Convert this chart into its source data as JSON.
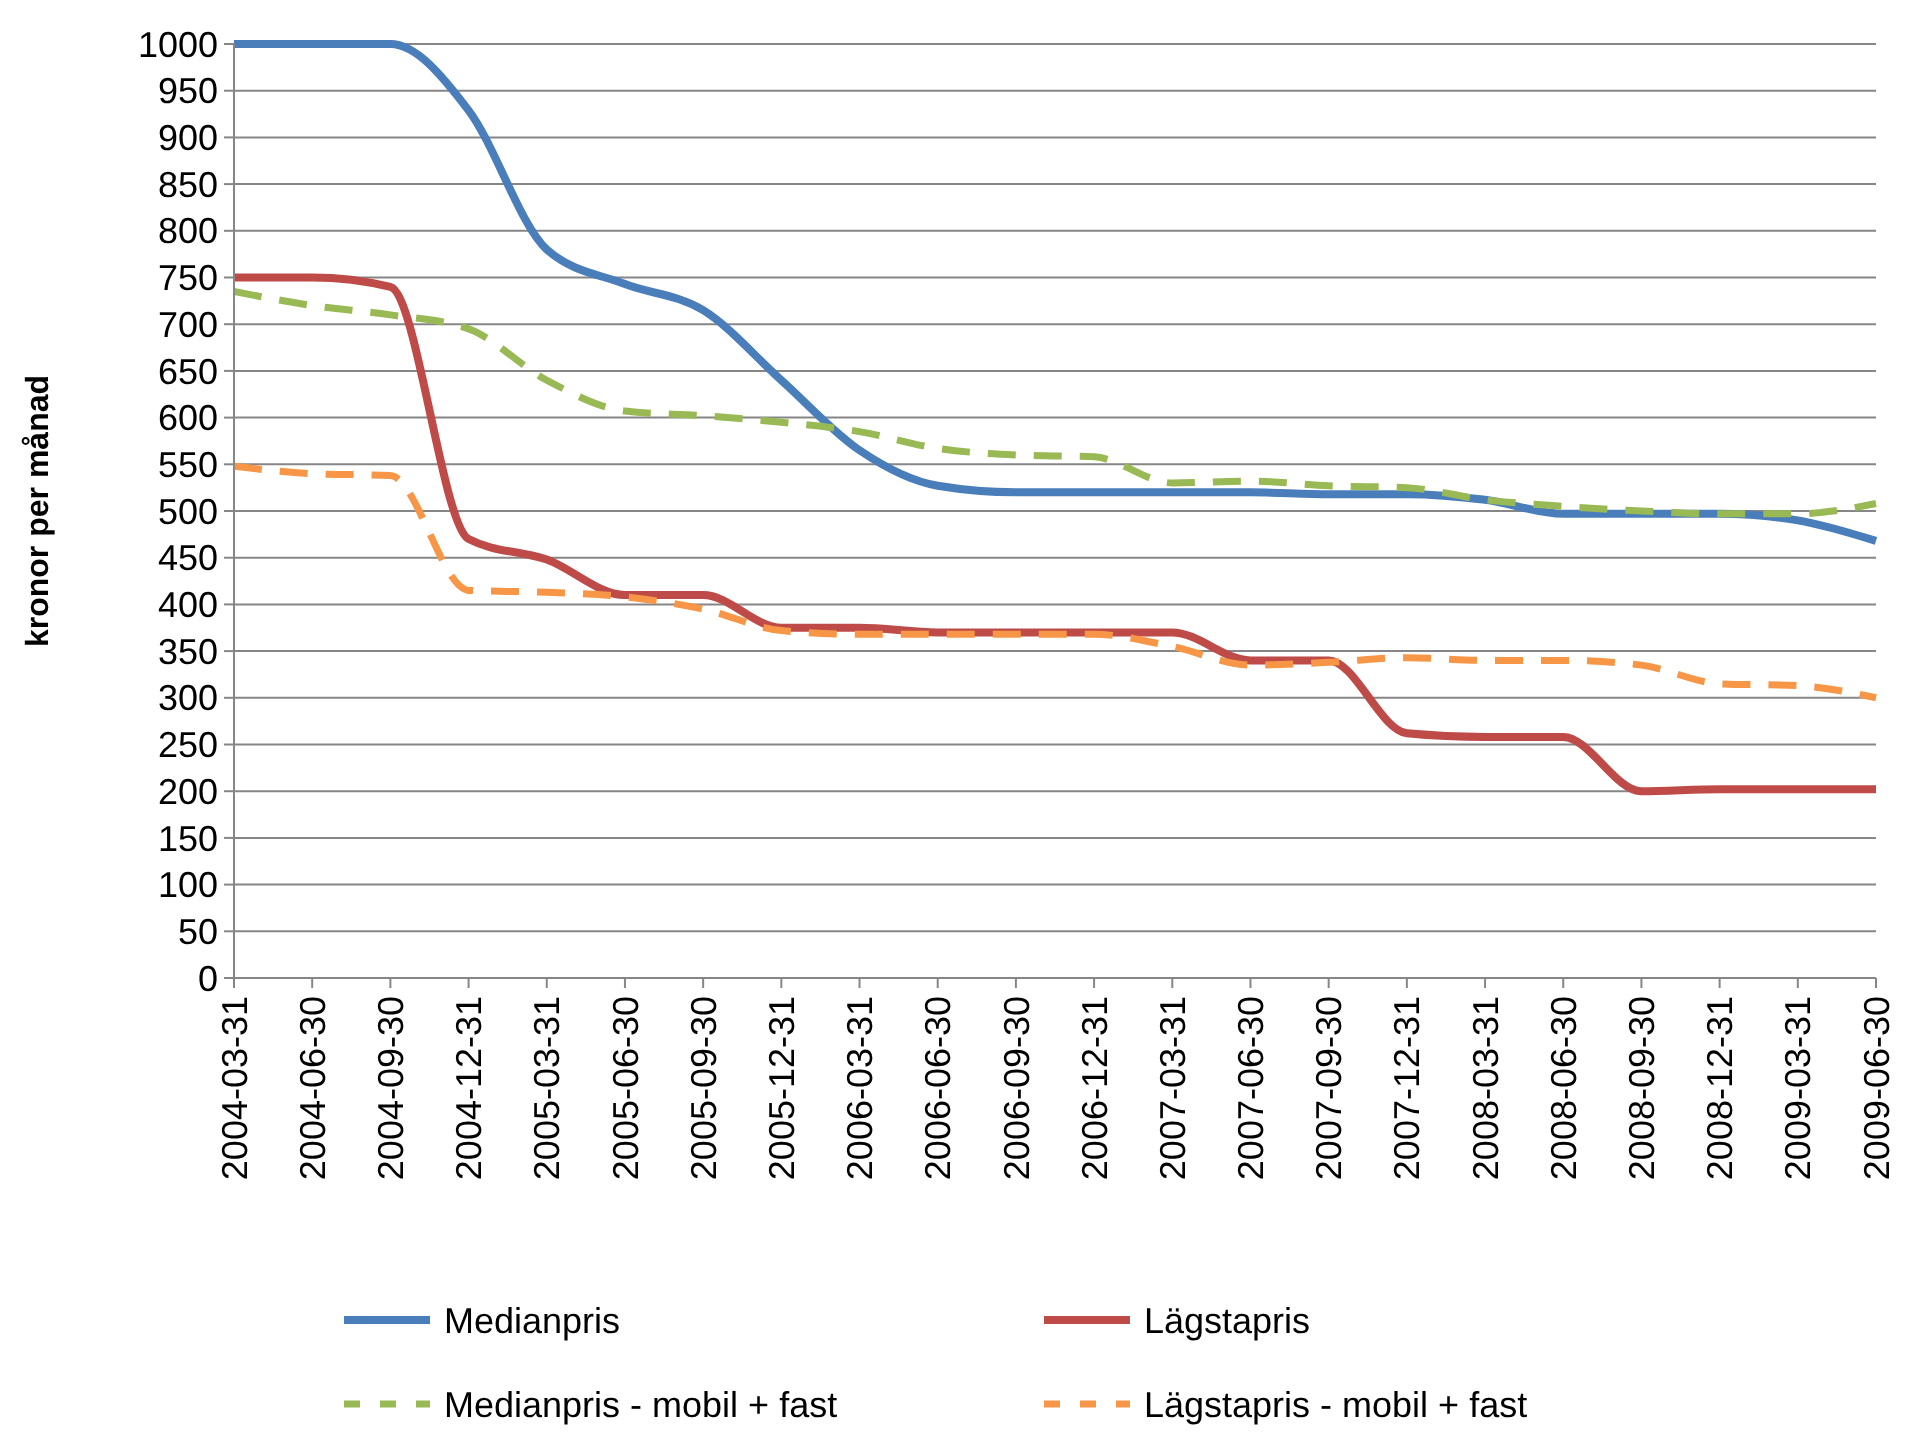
{
  "chart_data": {
    "type": "line",
    "ylabel": "kronor per månad",
    "categories": [
      "2004-03-31",
      "2004-06-30",
      "2004-09-30",
      "2004-12-31",
      "2005-03-31",
      "2005-06-30",
      "2005-09-30",
      "2005-12-31",
      "2006-03-31",
      "2006-06-30",
      "2006-09-30",
      "2006-12-31",
      "2007-03-31",
      "2007-06-30",
      "2007-09-30",
      "2007-12-31",
      "2008-03-31",
      "2008-06-30",
      "2008-09-30",
      "2008-12-31",
      "2009-03-31",
      "2009-06-30"
    ],
    "ylim": [
      0,
      1000
    ],
    "yticks": [
      0,
      50,
      100,
      150,
      200,
      250,
      300,
      350,
      400,
      450,
      500,
      550,
      600,
      650,
      700,
      750,
      800,
      850,
      900,
      950,
      1000
    ],
    "grid": "y",
    "legend": "bottom",
    "series": [
      {
        "name": "Medianpris",
        "color": "#4a7ebb",
        "line_style": "solid",
        "values": [
          1000,
          1000,
          1000,
          929,
          780,
          743,
          715,
          640,
          565,
          527,
          520,
          520,
          520,
          520,
          518,
          518,
          512,
          497,
          497,
          497,
          490,
          468
        ]
      },
      {
        "name": "Lägstapris",
        "color": "#be4b48",
        "line_style": "solid",
        "values": [
          750,
          750,
          740,
          470,
          448,
          410,
          410,
          375,
          375,
          370,
          370,
          370,
          370,
          340,
          340,
          262,
          258,
          258,
          200,
          202,
          202,
          202
        ]
      },
      {
        "name": "Medianpris - mobil + fast",
        "color": "#98b954",
        "line_style": "dashed",
        "values": [
          735,
          720,
          710,
          695,
          640,
          607,
          602,
          595,
          585,
          567,
          560,
          558,
          530,
          532,
          527,
          525,
          512,
          505,
          500,
          497,
          497,
          508
        ]
      },
      {
        "name": "Lägstapris - mobil + fast",
        "color": "#f79646",
        "line_style": "dashed",
        "values": [
          548,
          540,
          538,
          415,
          413,
          408,
          395,
          372,
          368,
          368,
          368,
          368,
          355,
          335,
          338,
          343,
          340,
          340,
          335,
          315,
          313,
          300
        ]
      }
    ]
  }
}
